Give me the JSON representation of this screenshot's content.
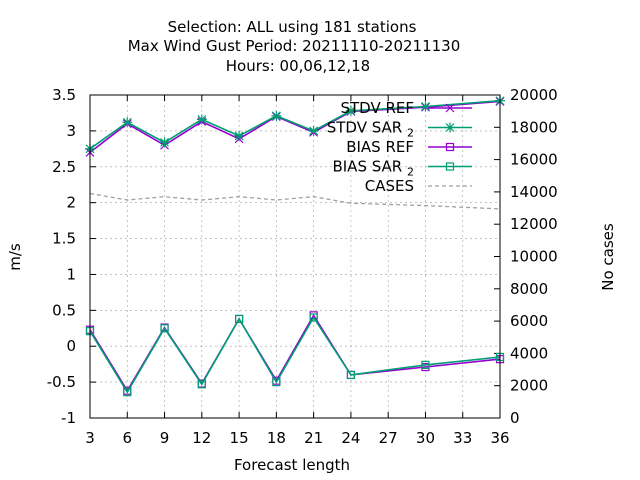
{
  "chart_data": {
    "type": "line",
    "title_lines": [
      "Selection: ALL using   181 stations",
      "Max Wind Gust   Period: 20211110-20211130",
      "Hours:  00,06,12,18"
    ],
    "xlabel": "Forecast length",
    "ylabel": "m/s",
    "y2label": "No cases",
    "xlim": [
      3,
      36
    ],
    "ylim": [
      -1,
      3.5
    ],
    "y2lim": [
      0,
      20000
    ],
    "x_ticks": [
      3,
      6,
      9,
      12,
      15,
      18,
      21,
      24,
      27,
      30,
      33,
      36
    ],
    "y_ticks": [
      -1,
      -0.5,
      0,
      0.5,
      1,
      1.5,
      2,
      2.5,
      3,
      3.5
    ],
    "y2_ticks": [
      0,
      2000,
      4000,
      6000,
      8000,
      10000,
      12000,
      14000,
      16000,
      18000,
      20000
    ],
    "grid": true,
    "legend_position": "top-right",
    "x": [
      3,
      6,
      9,
      12,
      15,
      18,
      21,
      24,
      30,
      36
    ],
    "series": [
      {
        "name": "STDV REF",
        "color": "#9400d3",
        "marker": "x",
        "axis": "y",
        "values": [
          2.7,
          3.1,
          2.8,
          3.13,
          2.89,
          3.2,
          2.98,
          3.27,
          3.33,
          3.41
        ]
      },
      {
        "name": "STDV SAR",
        "name_subscript": "2",
        "color": "#009e73",
        "marker": "star",
        "axis": "y",
        "values": [
          2.75,
          3.12,
          2.84,
          3.16,
          2.93,
          3.21,
          3.0,
          3.28,
          3.34,
          3.42
        ]
      },
      {
        "name": "BIAS REF",
        "color": "#9400d3",
        "marker": "square",
        "axis": "y",
        "values": [
          0.23,
          -0.62,
          0.26,
          -0.52,
          0.38,
          -0.48,
          0.43,
          -0.4,
          -0.29,
          -0.18
        ]
      },
      {
        "name": "BIAS SAR",
        "name_subscript": "2",
        "color": "#009e73",
        "marker": "square",
        "axis": "y",
        "values": [
          0.21,
          -0.64,
          0.25,
          -0.53,
          0.38,
          -0.5,
          0.4,
          -0.4,
          -0.26,
          -0.15
        ]
      },
      {
        "name": "CASES",
        "color": "#a0a0a0",
        "marker": "none",
        "dashed": true,
        "axis": "y2",
        "values": [
          13900,
          13500,
          13700,
          13500,
          13700,
          13500,
          13700,
          13300,
          13150,
          12950
        ]
      }
    ]
  }
}
